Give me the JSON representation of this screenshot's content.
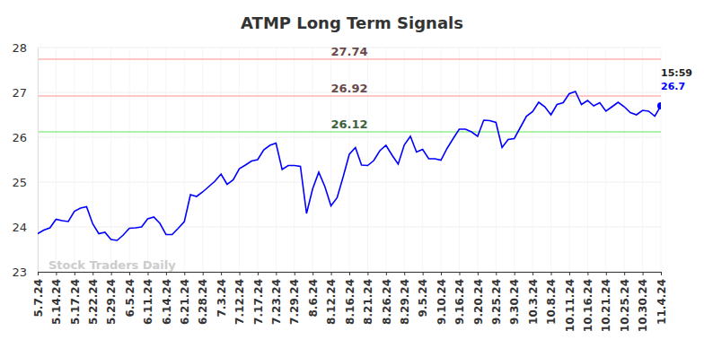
{
  "chart_data": {
    "type": "line",
    "title": "ATMP Long Term Signals",
    "watermark": "Stock Traders Daily",
    "categories": [
      "5.7.24",
      null,
      null,
      "5.14.24",
      null,
      null,
      "5.17.24",
      null,
      null,
      "5.22.24",
      null,
      null,
      "5.29.24",
      null,
      null,
      "6.5.24",
      null,
      null,
      "6.11.24",
      null,
      null,
      "6.14.24",
      null,
      null,
      "6.21.24",
      null,
      null,
      "6.28.24",
      null,
      null,
      "7.3.24",
      null,
      null,
      "7.12.24",
      null,
      null,
      "7.17.24",
      null,
      null,
      "7.23.24",
      null,
      null,
      "7.29.24",
      null,
      null,
      "8.6.24",
      null,
      null,
      "8.12.24",
      null,
      null,
      "8.16.24",
      null,
      null,
      "8.21.24",
      null,
      null,
      "8.26.24",
      null,
      null,
      "8.29.24",
      null,
      null,
      "9.5.24",
      null,
      null,
      "9.10.24",
      null,
      null,
      "9.16.24",
      null,
      null,
      "9.20.24",
      null,
      null,
      "9.25.24",
      null,
      null,
      "9.30.24",
      null,
      null,
      "10.3.24",
      null,
      null,
      "10.8.24",
      null,
      null,
      "10.11.24",
      null,
      null,
      "10.16.24",
      null,
      null,
      "10.21.24",
      null,
      null,
      "10.25.24",
      null,
      null,
      "10.30.24",
      null,
      null,
      "11.4.24"
    ],
    "series": [
      {
        "color": "#0000ff",
        "values": [
          23.85,
          23.93,
          23.98,
          24.17,
          24.14,
          24.12,
          24.35,
          24.42,
          24.45,
          24.07,
          23.85,
          23.88,
          23.72,
          23.7,
          23.82,
          23.97,
          23.98,
          24.0,
          24.18,
          24.22,
          24.08,
          23.83,
          23.83,
          23.97,
          24.12,
          24.72,
          24.68,
          24.78,
          24.9,
          25.02,
          25.18,
          24.95,
          25.05,
          25.3,
          25.38,
          25.47,
          25.5,
          25.72,
          25.82,
          25.87,
          25.28,
          25.37,
          25.37,
          25.35,
          24.3,
          24.85,
          25.22,
          24.9,
          24.47,
          24.65,
          25.12,
          25.62,
          25.77,
          25.38,
          25.37,
          25.48,
          25.7,
          25.82,
          25.6,
          25.4,
          25.83,
          26.02,
          25.67,
          25.73,
          25.52,
          25.52,
          25.49,
          25.75,
          25.97,
          26.18,
          26.18,
          26.12,
          26.02,
          26.38,
          26.37,
          26.33,
          25.77,
          25.95,
          25.97,
          26.22,
          26.47,
          26.57,
          26.78,
          26.68,
          26.5,
          26.73,
          26.77,
          26.97,
          27.02,
          26.73,
          26.82,
          26.7,
          26.77,
          26.58,
          26.68,
          26.78,
          26.68,
          26.55,
          26.5,
          26.6,
          26.58,
          26.47,
          26.7
        ]
      }
    ],
    "last_point": {
      "time_label": "15:59",
      "value_label": "26.7"
    },
    "reference_lines": [
      {
        "value": 27.74,
        "label": "27.74",
        "color": "#ffb3b3"
      },
      {
        "value": 26.92,
        "label": "26.92",
        "color": "#ffb3b3"
      },
      {
        "value": 26.12,
        "label": "26.12",
        "color": "#90ee90"
      }
    ],
    "ylim": [
      23,
      28
    ],
    "yticks": [
      23,
      24,
      25,
      26,
      27,
      28
    ],
    "grid": true
  }
}
